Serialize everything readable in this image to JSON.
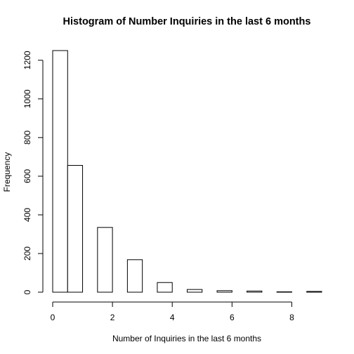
{
  "chart_data": {
    "type": "bar",
    "title": "Histogram of Number Inquiries in the last 6 months",
    "xlabel": "Number of Inquiries in the last 6 months",
    "ylabel": "Frequency",
    "bins": [
      {
        "x0": 0.0,
        "x1": 0.5,
        "value": 1250
      },
      {
        "x0": 0.5,
        "x1": 1.0,
        "value": 656
      },
      {
        "x0": 1.0,
        "x1": 1.5,
        "value": 0
      },
      {
        "x0": 1.5,
        "x1": 2.0,
        "value": 335
      },
      {
        "x0": 2.0,
        "x1": 2.5,
        "value": 0
      },
      {
        "x0": 2.5,
        "x1": 3.0,
        "value": 168
      },
      {
        "x0": 3.0,
        "x1": 3.5,
        "value": 0
      },
      {
        "x0": 3.5,
        "x1": 4.0,
        "value": 50
      },
      {
        "x0": 4.0,
        "x1": 4.5,
        "value": 0
      },
      {
        "x0": 4.5,
        "x1": 5.0,
        "value": 14
      },
      {
        "x0": 5.0,
        "x1": 5.5,
        "value": 0
      },
      {
        "x0": 5.5,
        "x1": 6.0,
        "value": 8
      },
      {
        "x0": 6.0,
        "x1": 6.5,
        "value": 0
      },
      {
        "x0": 6.5,
        "x1": 7.0,
        "value": 6
      },
      {
        "x0": 7.0,
        "x1": 7.5,
        "value": 0
      },
      {
        "x0": 7.5,
        "x1": 8.0,
        "value": 2
      },
      {
        "x0": 8.0,
        "x1": 8.5,
        "value": 0
      },
      {
        "x0": 8.5,
        "x1": 9.0,
        "value": 4
      }
    ],
    "xlim": [
      0,
      9
    ],
    "ylim": [
      0,
      1250
    ],
    "xticks": [
      0,
      2,
      4,
      6,
      8
    ],
    "yticks": [
      0,
      200,
      400,
      600,
      800,
      1000,
      1200
    ],
    "xtick_labels": [
      "0",
      "2",
      "4",
      "6",
      "8"
    ],
    "ytick_labels": [
      "0",
      "200",
      "400",
      "600",
      "800",
      "1000",
      "1200"
    ],
    "grid": false,
    "legend": "none"
  }
}
